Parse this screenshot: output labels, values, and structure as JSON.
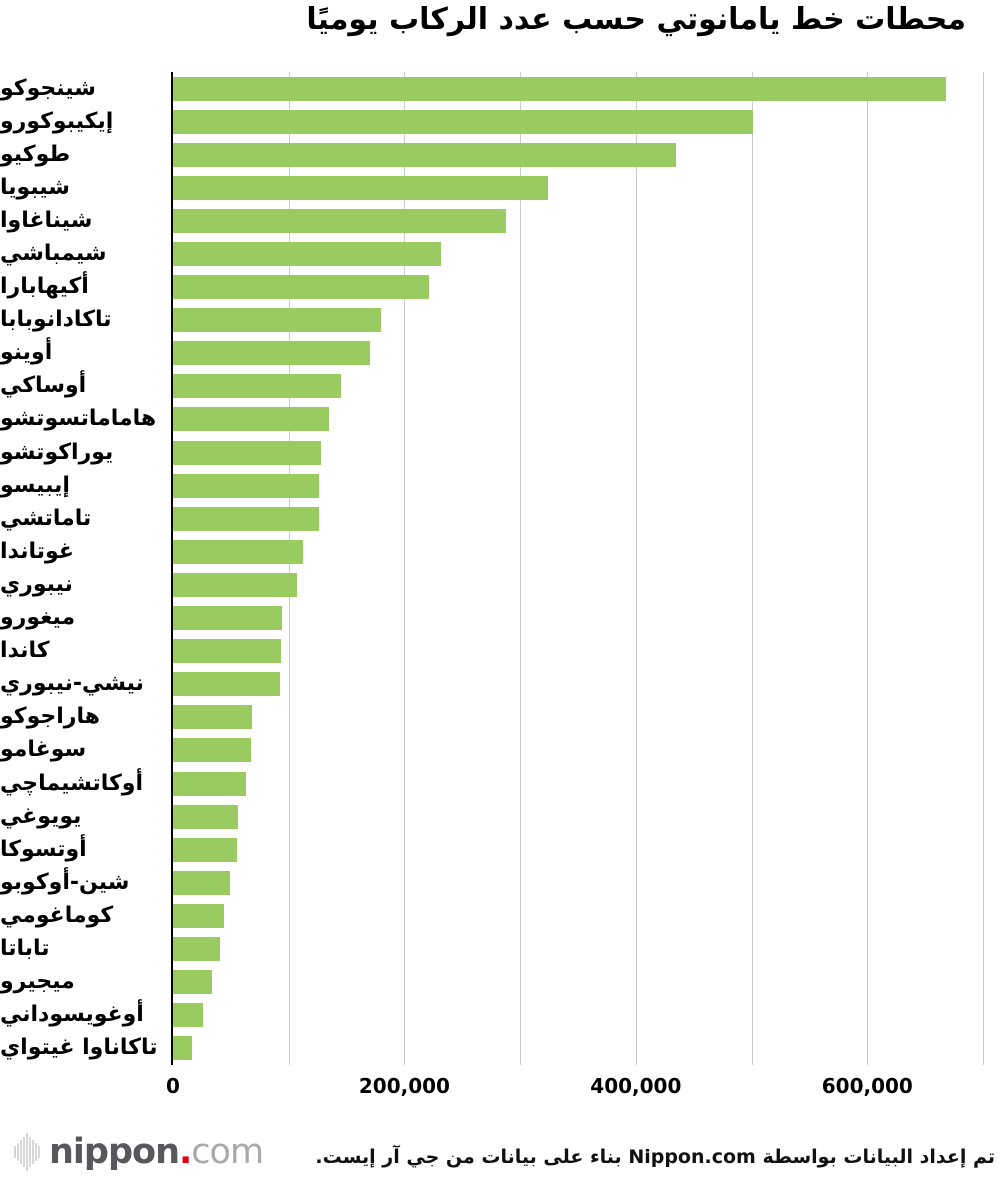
{
  "title": "محطات خط يامانوتي حسب عدد الركاب يوميًا",
  "chart_data": {
    "type": "bar",
    "orientation": "horizontal",
    "title": "محطات خط يامانوتي حسب عدد الركاب يوميًا",
    "xlabel": "",
    "ylabel": "",
    "xlim": [
      0,
      700000
    ],
    "grid": true,
    "gridline_interval": 100000,
    "legend": "none",
    "bar_color": "#9acb60",
    "categories": [
      "شينجوكو",
      "إيكيبوكورو",
      "طوكيو",
      "شيبويا",
      "شيناغاوا",
      "شيمباشي",
      "أكيهابارا",
      "تاكادانوبابا",
      "أوينو",
      "أوساكي",
      "هاماماتسوتشو",
      "يوراكوتشو",
      "إيبيسو",
      "تاماتشي",
      "غوتاندا",
      "نيبوري",
      "ميغورو",
      "كاندا",
      "نيشي-نيبوري",
      "هاراجوكو",
      "سوغامو",
      "أوكاتشيماچي",
      "يويوغي",
      "أوتسوكا",
      "شين-أوكوبو",
      "كوماغومي",
      "تاباتا",
      "ميجيرو",
      "أوغويسوداني",
      "تاكاناوا غيتواي"
    ],
    "values": [
      668000,
      501000,
      435000,
      324500,
      288000,
      232000,
      221500,
      180000,
      170000,
      145500,
      134500,
      127500,
      126500,
      126000,
      112000,
      107500,
      94000,
      93000,
      92500,
      68000,
      67500,
      63500,
      56500,
      55000,
      49500,
      44500,
      41000,
      34000,
      25500,
      16000
    ],
    "x_ticks": [
      {
        "value": 0,
        "label": "0"
      },
      {
        "value": 200000,
        "label": "200,000"
      },
      {
        "value": 400000,
        "label": "400,000"
      },
      {
        "value": 600000,
        "label": "600,000"
      }
    ]
  },
  "footer": {
    "credit": "تم إعداد البيانات بواسطة Nippon.com بناء على بيانات من جي آر إيست.",
    "logo": {
      "word": "nippon",
      "dot": ".",
      "tld": "com"
    }
  },
  "colors": {
    "bar": "#9acb60",
    "gridline": "#cccccc",
    "axis": "#000000",
    "text": "#000000",
    "logo_dark": "#57585c",
    "logo_dot": "#e60012",
    "logo_light": "#a9a9a9",
    "logo_icon": "#d8d8d8"
  }
}
